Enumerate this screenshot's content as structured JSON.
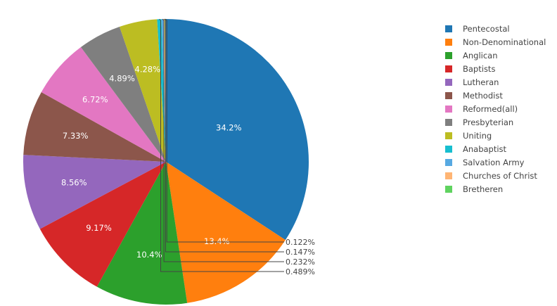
{
  "chart_data": {
    "type": "pie",
    "legend_position": "top-right",
    "direction": "clockwise",
    "start_angle": "top",
    "categories": [
      "Pentecostal",
      "Non-Denominational",
      "Anglican",
      "Baptists",
      "Lutheran",
      "Methodist",
      "Reformed(all)",
      "Presbyterian",
      "Uniting",
      "Anabaptist",
      "Salvation Army",
      "Churches of Christ",
      "Bretheren"
    ],
    "values": [
      34.2,
      13.4,
      10.4,
      9.17,
      8.56,
      7.33,
      6.72,
      4.89,
      4.28,
      0.489,
      0.232,
      0.147,
      0.122
    ],
    "labels": [
      "34.2%",
      "13.4%",
      "10.4%",
      "9.17%",
      "8.56%",
      "7.33%",
      "6.72%",
      "4.89%",
      "4.28%",
      "0.489%",
      "0.232%",
      "0.147%",
      "0.122%"
    ],
    "colors": [
      "#1f77b4",
      "#ff7f0e",
      "#2ca02c",
      "#d62728",
      "#9467bd",
      "#8c564b",
      "#e377c2",
      "#7f7f7f",
      "#bcbd22",
      "#17becf",
      "#57a9e2",
      "#ffb574",
      "#5fd35f"
    ]
  }
}
